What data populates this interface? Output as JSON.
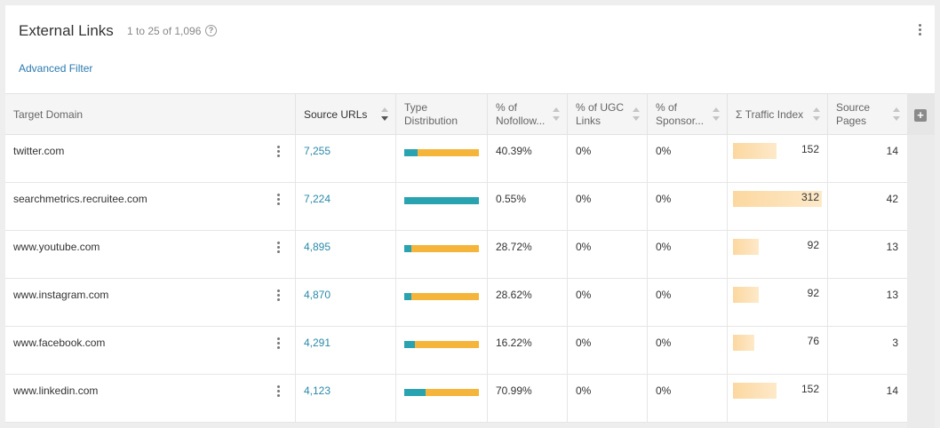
{
  "header": {
    "title": "External Links",
    "count": "1 to 25 of 1,096",
    "help_glyph": "?",
    "advanced_filter": "Advanced Filter"
  },
  "colors": {
    "link": "#2a8aa8",
    "dist_teal": "#2aa3b1",
    "dist_orange": "#f5b53b",
    "traffic_bar": "#fcd8a0"
  },
  "columns": {
    "target_domain": "Target Domain",
    "source_urls": "Source URLs",
    "type_dist_1": "Type",
    "type_dist_2": "Distribution",
    "nofollow_1": "% of",
    "nofollow_2": "Nofollow...",
    "ugc_1": "% of UGC",
    "ugc_2": "Links",
    "sponsor_1": "% of",
    "sponsor_2": "Sponsor...",
    "traffic_index": "Σ Traffic Index",
    "source_pages_1": "Source",
    "source_pages_2": "Pages",
    "add_column_glyph": "+"
  },
  "rows": [
    {
      "domain": "twitter.com",
      "source_urls": "7,255",
      "dist_teal_fraction": 0.18,
      "nofollow": "40.39%",
      "ugc": "0%",
      "sponsored": "0%",
      "traffic_index": "152",
      "traffic_value": 152,
      "source_pages": "14"
    },
    {
      "domain": "searchmetrics.recruitee.com",
      "source_urls": "7,224",
      "dist_teal_fraction": 1.0,
      "nofollow": "0.55%",
      "ugc": "0%",
      "sponsored": "0%",
      "traffic_index": "312",
      "traffic_value": 312,
      "source_pages": "42"
    },
    {
      "domain": "www.youtube.com",
      "source_urls": "4,895",
      "dist_teal_fraction": 0.09,
      "nofollow": "28.72%",
      "ugc": "0%",
      "sponsored": "0%",
      "traffic_index": "92",
      "traffic_value": 92,
      "source_pages": "13"
    },
    {
      "domain": "www.instagram.com",
      "source_urls": "4,870",
      "dist_teal_fraction": 0.09,
      "nofollow": "28.62%",
      "ugc": "0%",
      "sponsored": "0%",
      "traffic_index": "92",
      "traffic_value": 92,
      "source_pages": "13"
    },
    {
      "domain": "www.facebook.com",
      "source_urls": "4,291",
      "dist_teal_fraction": 0.14,
      "nofollow": "16.22%",
      "ugc": "0%",
      "sponsored": "0%",
      "traffic_index": "76",
      "traffic_value": 76,
      "source_pages": "3"
    },
    {
      "domain": "www.linkedin.com",
      "source_urls": "4,123",
      "dist_teal_fraction": 0.29,
      "nofollow": "70.99%",
      "ugc": "0%",
      "sponsored": "0%",
      "traffic_index": "152",
      "traffic_value": 152,
      "source_pages": "14"
    }
  ]
}
